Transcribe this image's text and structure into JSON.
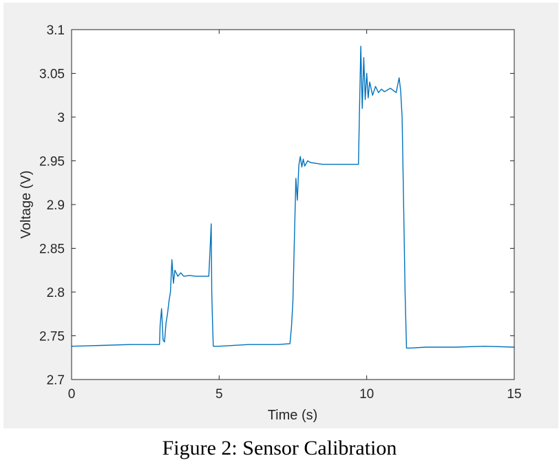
{
  "caption": "Figure 2: Sensor Calibration",
  "colors": {
    "figure_bg": "#f0f0f0",
    "axes_bg": "#ffffff",
    "line": "#0072bd",
    "axis": "#262626"
  },
  "chart_data": {
    "type": "line",
    "title": "",
    "xlabel": "Time (s)",
    "ylabel": "Voltage (V)",
    "xlim": [
      0,
      15
    ],
    "ylim": [
      2.7,
      3.1
    ],
    "xticks": [
      0,
      5,
      10,
      15
    ],
    "xtick_labels": [
      "0",
      "5",
      "10",
      "15"
    ],
    "yticks": [
      2.7,
      2.75,
      2.8,
      2.85,
      2.9,
      2.95,
      3.0,
      3.05,
      3.1
    ],
    "ytick_labels": [
      "2.7",
      "2.75",
      "2.8",
      "2.85",
      "2.9",
      "2.95",
      "3",
      "3.05",
      "3.1"
    ],
    "grid": false,
    "series": [
      {
        "name": "Voltage",
        "x": [
          0,
          1,
          2,
          2.98,
          3.0,
          3.05,
          3.1,
          3.15,
          3.2,
          3.25,
          3.3,
          3.35,
          3.4,
          3.45,
          3.5,
          3.6,
          3.7,
          3.8,
          4.0,
          4.2,
          4.5,
          4.65,
          4.7,
          4.73,
          4.75,
          4.78,
          4.8,
          5,
          6,
          7,
          7.4,
          7.45,
          7.5,
          7.55,
          7.6,
          7.65,
          7.7,
          7.75,
          7.8,
          7.85,
          7.9,
          8.0,
          8.1,
          8.3,
          8.5,
          9,
          9.5,
          9.72,
          9.75,
          9.8,
          9.85,
          9.9,
          9.95,
          10.0,
          10.05,
          10.1,
          10.2,
          10.3,
          10.4,
          10.5,
          10.6,
          10.8,
          11.0,
          11.1,
          11.15,
          11.2,
          11.25,
          11.3,
          11.35,
          11.5,
          12,
          13,
          14,
          15
        ],
        "y": [
          2.738,
          2.739,
          2.74,
          2.74,
          2.762,
          2.781,
          2.745,
          2.743,
          2.765,
          2.775,
          2.79,
          2.8,
          2.837,
          2.81,
          2.825,
          2.818,
          2.822,
          2.818,
          2.819,
          2.818,
          2.818,
          2.818,
          2.855,
          2.878,
          2.8,
          2.76,
          2.738,
          2.738,
          2.74,
          2.74,
          2.741,
          2.76,
          2.79,
          2.86,
          2.93,
          2.905,
          2.945,
          2.955,
          2.943,
          2.952,
          2.944,
          2.95,
          2.948,
          2.947,
          2.946,
          2.946,
          2.946,
          2.946,
          3.0,
          3.081,
          3.01,
          3.068,
          3.02,
          3.05,
          3.022,
          3.04,
          3.025,
          3.035,
          3.028,
          3.032,
          3.029,
          3.033,
          3.028,
          3.045,
          3.03,
          3.0,
          2.9,
          2.8,
          2.736,
          2.736,
          2.737,
          2.737,
          2.738,
          2.737
        ]
      }
    ]
  }
}
